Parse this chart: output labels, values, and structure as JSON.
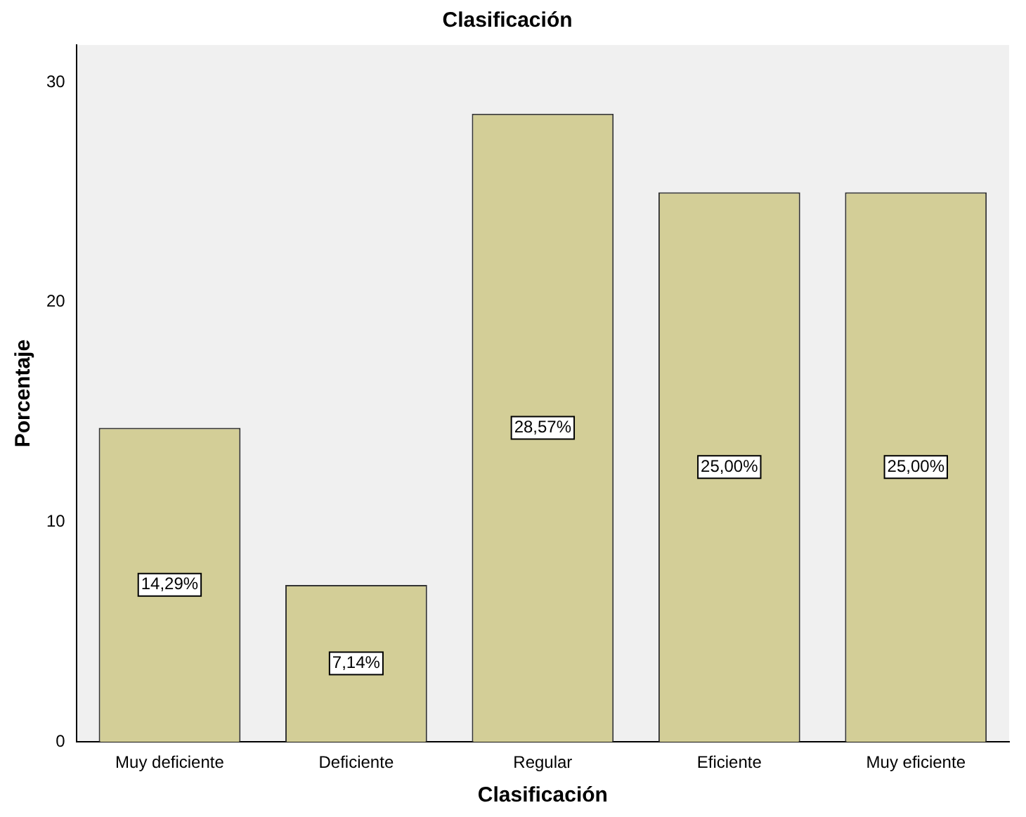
{
  "chart_data": {
    "type": "bar",
    "title": "Clasificación",
    "xlabel": "Clasificación",
    "ylabel": "Porcentaje",
    "categories": [
      "Muy deficiente",
      "Deficiente",
      "Regular",
      "Eficiente",
      "Muy eficiente"
    ],
    "values": [
      14.29,
      7.14,
      28.57,
      25.0,
      25.0
    ],
    "value_labels": [
      "14,29%",
      "7,14%",
      "28,57%",
      "25,00%",
      "25,00%"
    ],
    "color": "#d3ce97",
    "ylim": [
      0,
      31.7
    ],
    "yticks": [
      0,
      10,
      20,
      30
    ],
    "grid": false,
    "legend": false
  }
}
